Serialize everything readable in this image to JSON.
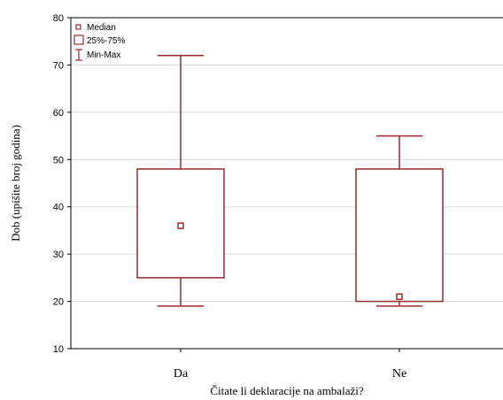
{
  "chart_data": {
    "type": "boxplot",
    "xlabel": "Čitate li deklaracije na ambalaži?",
    "ylabel": "Dob (upišite broj godina)",
    "ylim": [
      10,
      80
    ],
    "yticks": [
      10,
      20,
      30,
      40,
      50,
      60,
      70,
      80
    ],
    "grid": true,
    "legend_position": "top-left",
    "categories": [
      "Da",
      "Ne"
    ],
    "boxes": [
      {
        "category": "Da",
        "min": 19,
        "q1": 25,
        "median": 36,
        "q3": 48,
        "max": 72
      },
      {
        "category": "Ne",
        "min": 19,
        "q1": 20,
        "median": 21,
        "q3": 48,
        "max": 55
      }
    ],
    "legend": [
      "Median",
      "25%-75%",
      "Min-Max"
    ],
    "colors": {
      "stroke": "#a0282a",
      "grid": "#d9d9d9",
      "axis": "#000000"
    }
  }
}
